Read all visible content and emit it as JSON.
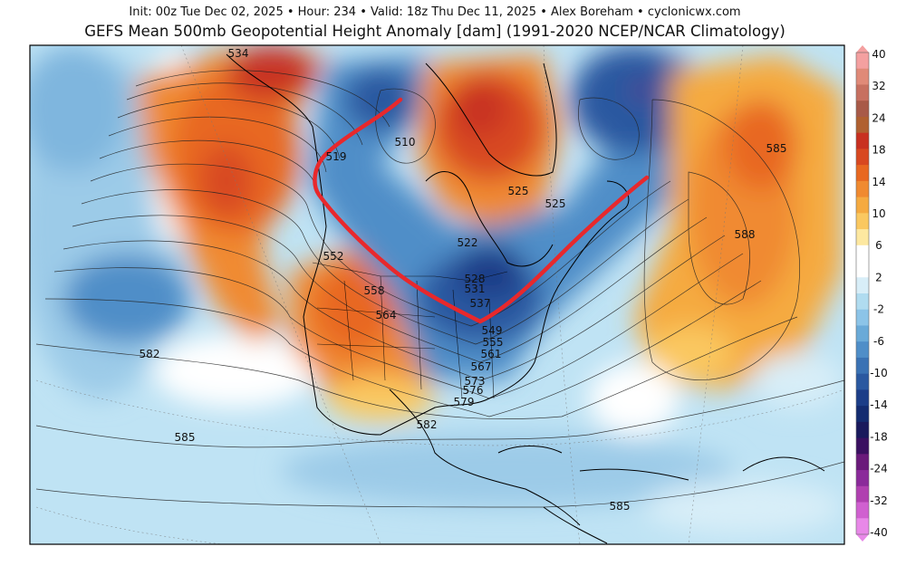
{
  "header": {
    "subtitle": "Init: 00z Tue Dec 02, 2025 • Hour: 234 • Valid: 18z Thu Dec 11, 2025 • Alex Boreham • cyclonicwx.com",
    "title": "GEFS Mean 500mb Geopotential Height Anomaly [dam] (1991-2020 NCEP/NCAR Climatology)"
  },
  "contour_labels": [
    {
      "text": "534"
    },
    {
      "text": "519"
    },
    {
      "text": "510"
    },
    {
      "text": "525"
    },
    {
      "text": "525"
    },
    {
      "text": "522"
    },
    {
      "text": "528"
    },
    {
      "text": "531"
    },
    {
      "text": "537"
    },
    {
      "text": "552"
    },
    {
      "text": "558"
    },
    {
      "text": "564"
    },
    {
      "text": "549"
    },
    {
      "text": "555"
    },
    {
      "text": "561"
    },
    {
      "text": "567"
    },
    {
      "text": "573"
    },
    {
      "text": "576"
    },
    {
      "text": "579"
    },
    {
      "text": "582"
    },
    {
      "text": "582"
    },
    {
      "text": "585"
    },
    {
      "text": "585"
    },
    {
      "text": "585"
    },
    {
      "text": "588"
    }
  ],
  "colorbar": {
    "labels": [
      "40",
      "32",
      "24",
      "18",
      "14",
      "10",
      "6",
      "2",
      "-2",
      "-6",
      "-10",
      "-14",
      "-18",
      "-24",
      "-32",
      "-40"
    ],
    "colors": [
      "#f4a0a0",
      "#e08a78",
      "#c77060",
      "#a85a48",
      "#b06030",
      "#c83020",
      "#d84820",
      "#e86820",
      "#f08a30",
      "#f5aa40",
      "#fac860",
      "#fde8a0",
      "#ffffff",
      "#ffffff",
      "#d8eef8",
      "#b0dcf0",
      "#8cc4e8",
      "#6aaad8",
      "#4f8ec8",
      "#3a72b4",
      "#2a58a0",
      "#1c3e88",
      "#142c70",
      "#1a1a5c",
      "#3a1060",
      "#6a1a7a",
      "#8a2a9a",
      "#b040b0",
      "#d060d0",
      "#e888e8"
    ],
    "units": "dam"
  },
  "annotation": {
    "type": "trough-axis",
    "color": "#e8282c"
  }
}
